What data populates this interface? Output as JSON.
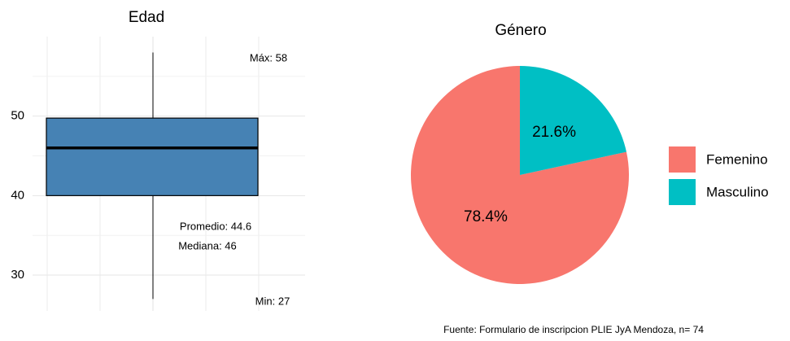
{
  "chart_data": [
    {
      "type": "box",
      "title": "Edad",
      "series": [
        {
          "name": null,
          "color": "#4682b4",
          "min": 27,
          "q1": 40,
          "median": 46,
          "q3": 49.75,
          "max": 58
        }
      ],
      "ylim": [
        25.5,
        60
      ],
      "yticks": [
        30,
        40,
        50
      ],
      "minor_grid": [
        35,
        45,
        55
      ],
      "grid": true,
      "annotations": [
        {
          "text": "Máx: 58",
          "color": "#0000ff"
        },
        {
          "text": "Promedio: 44.6",
          "color": "#ff0000"
        },
        {
          "text": "Mediana: 46",
          "color": "#b22222"
        },
        {
          "text": "Min: 27",
          "color": "#0000ff"
        }
      ]
    },
    {
      "type": "pie",
      "title": "Género",
      "categories": [
        "Femenino",
        "Masculino"
      ],
      "values": [
        78.4,
        21.6
      ],
      "value_labels": [
        "78.4%",
        "21.6%"
      ],
      "colors": [
        "#f8766d",
        "#00bfc4"
      ],
      "legend": "right",
      "caption": "Fuente: Formulario de inscripcion PLIE JyA Mendoza, n= 74"
    }
  ]
}
